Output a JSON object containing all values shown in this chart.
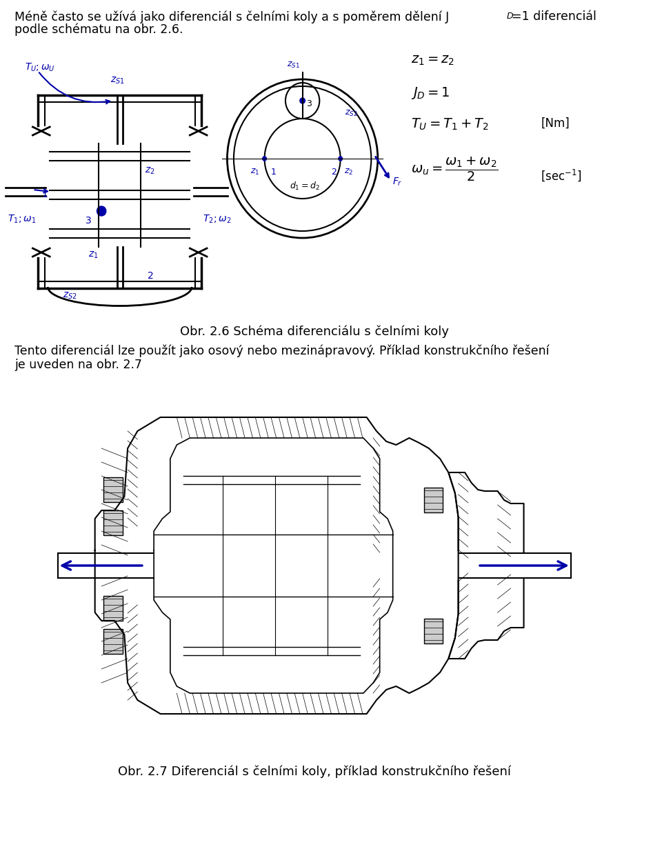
{
  "bg_color": "#ffffff",
  "text_color": "#000000",
  "blue_color": "#0000aa",
  "caption1": "Obr. 2.6 Schéma diferenciálu s čelními koly",
  "caption2": "Obr. 2.7 Diferenciál s čelními koly, příklad konstrukčního řešení",
  "para1_a": "Méně často se užívá jako diferenciál s čelními koly a s poměrem dělení J",
  "para1_b": "=1 diferenciál",
  "para1_c": "podle schématu na obr. 2.6.",
  "para2": "Tento diferenciál lze použít jako osový nebo mezinápravový. Příklad konstrukčního řešení",
  "para2b": "je uveden na obr. 2.7"
}
